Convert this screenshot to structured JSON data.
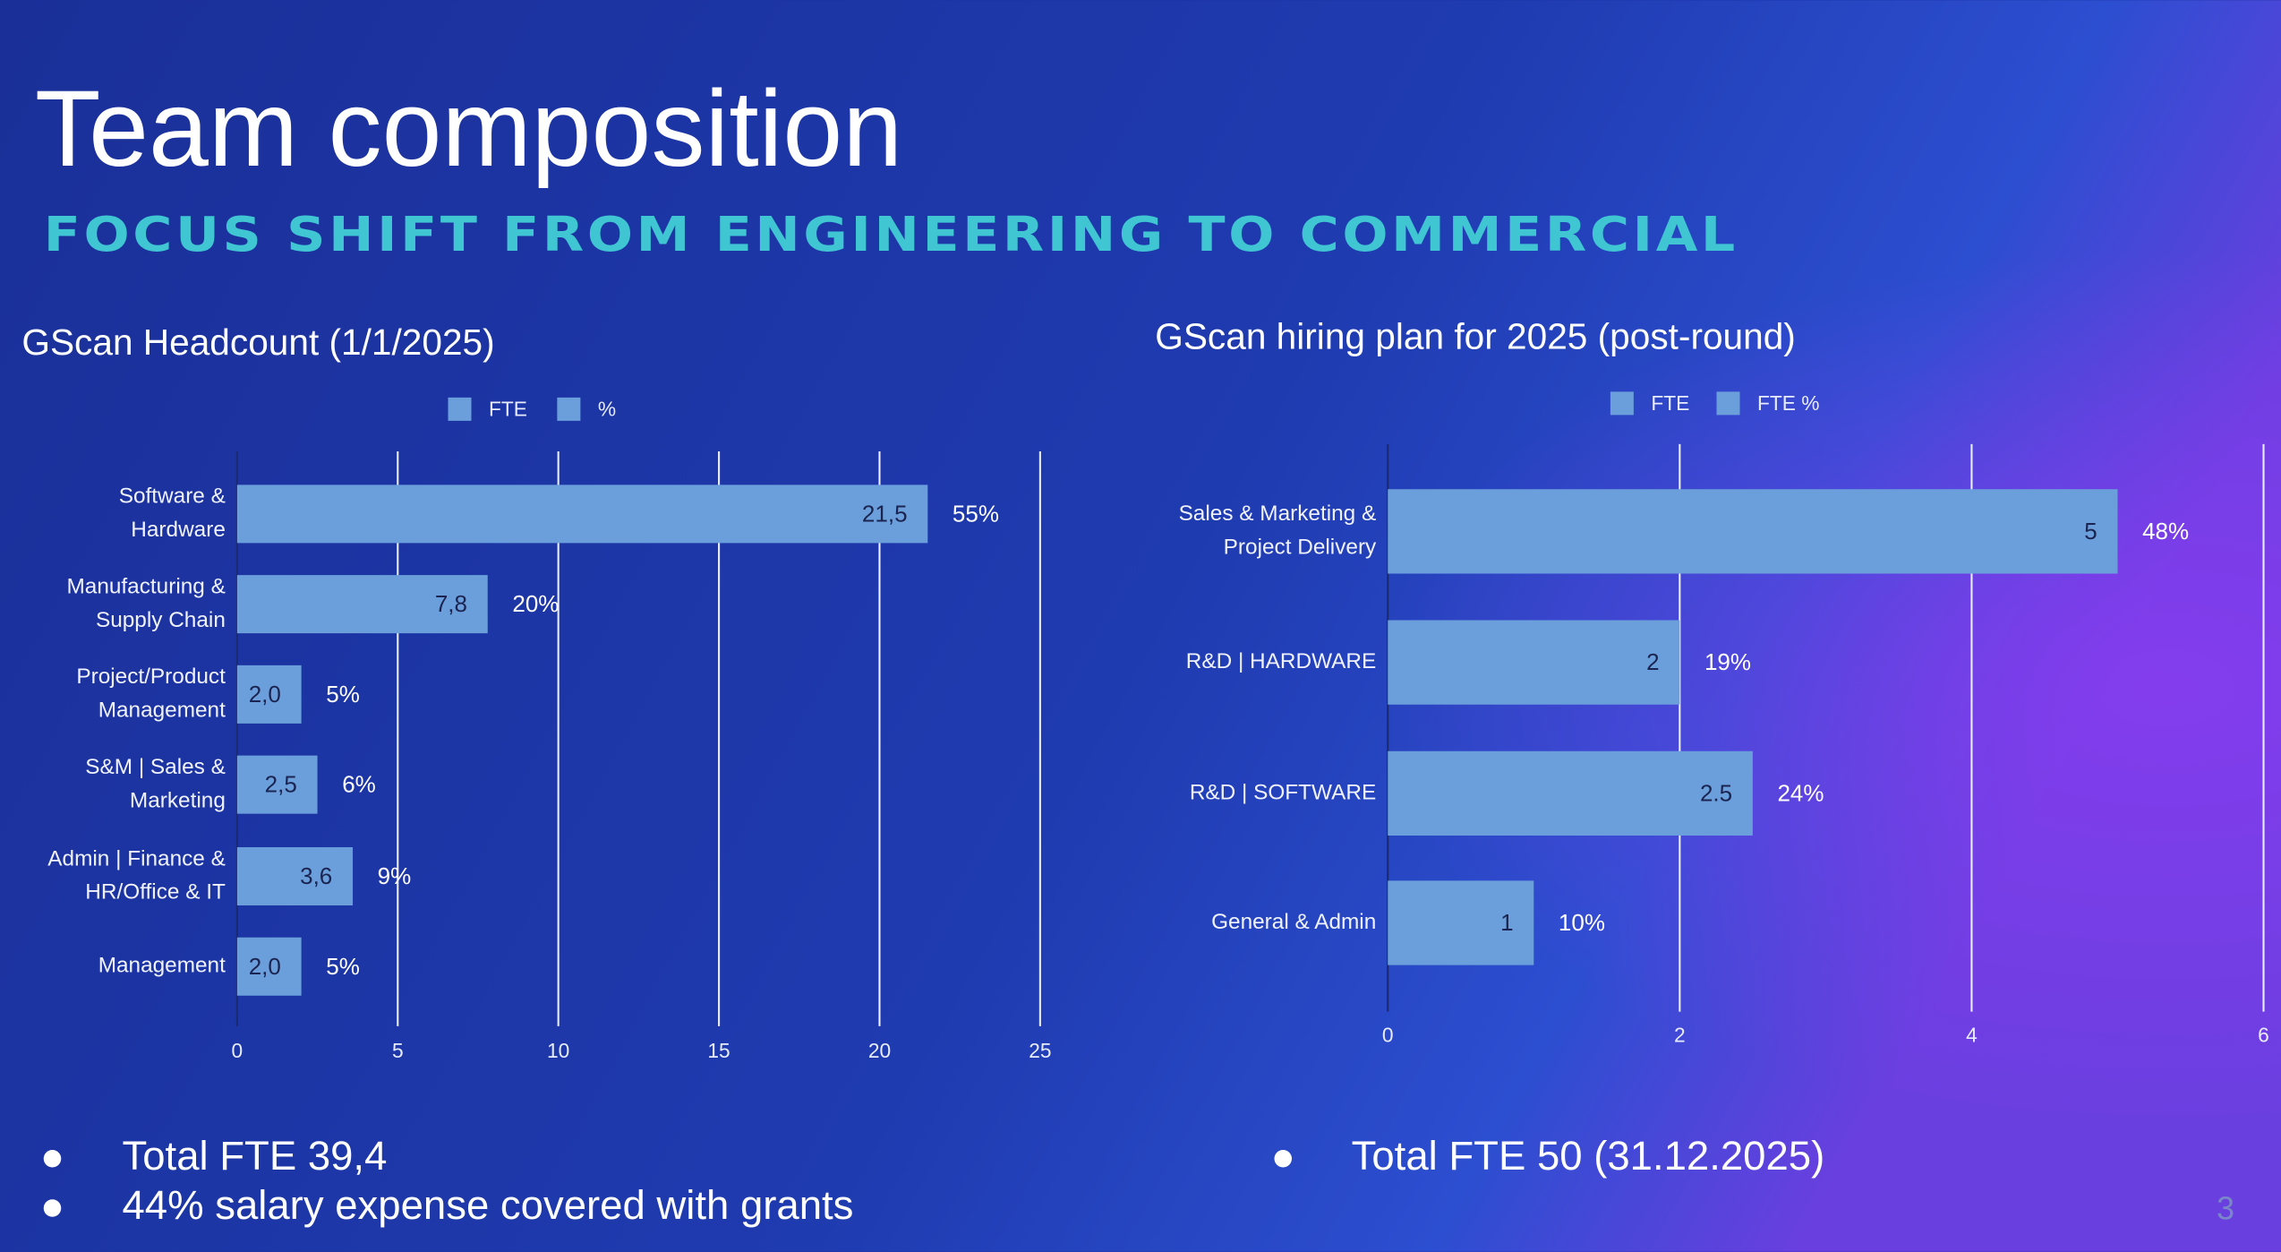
{
  "slide": {
    "title": "Team composition",
    "subtitle": "FOCUS SHIFT FROM ENGINEERING TO COMMERCIAL",
    "bullets_left": [
      "Total FTE 39,4",
      "44% salary expense covered with grants"
    ],
    "bullets_right": [
      "Total FTE 50 (31.12.2025)"
    ],
    "page_number": "3"
  },
  "chart_data": [
    {
      "type": "bar",
      "orientation": "horizontal",
      "title": "GScan Headcount (1/1/2025)",
      "categories": [
        [
          "Software &",
          "Hardware"
        ],
        [
          "Manufacturing &",
          "Supply Chain"
        ],
        [
          "Project/Product",
          "Management"
        ],
        [
          "S&M | Sales &",
          "Marketing"
        ],
        [
          "Admin | Finance &",
          "HR/Office & IT"
        ],
        [
          "Management"
        ]
      ],
      "series": [
        {
          "name": "FTE",
          "color": "#6b9fdc",
          "values": [
            21.5,
            7.8,
            2.0,
            2.5,
            3.6,
            2.0
          ],
          "value_labels": [
            "21,5",
            "7,8",
            "2,0",
            "2,5",
            "3,6",
            "2,0"
          ]
        },
        {
          "name": "%",
          "color": "#6b9fdc",
          "values": [
            55,
            20,
            5,
            6,
            9,
            5
          ],
          "value_labels": [
            "55%",
            "20%",
            "5%",
            "6%",
            "9%",
            "5%"
          ]
        }
      ],
      "xlim": [
        0,
        25
      ],
      "xticks": [
        0,
        5,
        10,
        15,
        20,
        25
      ],
      "grid": true,
      "legend": "top"
    },
    {
      "type": "bar",
      "orientation": "horizontal",
      "title": "GScan hiring plan for 2025 (post-round)",
      "categories": [
        [
          "Sales & Marketing &",
          "Project Delivery"
        ],
        [
          "R&D | HARDWARE"
        ],
        [
          "R&D | SOFTWARE"
        ],
        [
          "General & Admin"
        ]
      ],
      "series": [
        {
          "name": "FTE",
          "color": "#6b9fdc",
          "values": [
            5,
            2,
            2.5,
            1
          ]
        },
        {
          "name": "FTE %",
          "color": "#6b9fdc",
          "values": [
            48,
            19,
            24,
            10
          ],
          "value_labels": [
            "48%",
            "19%",
            "24%",
            "10%"
          ]
        }
      ],
      "xlim": [
        0,
        6
      ],
      "xticks": [
        0,
        2,
        4,
        6
      ],
      "grid": true,
      "legend": "top"
    }
  ]
}
